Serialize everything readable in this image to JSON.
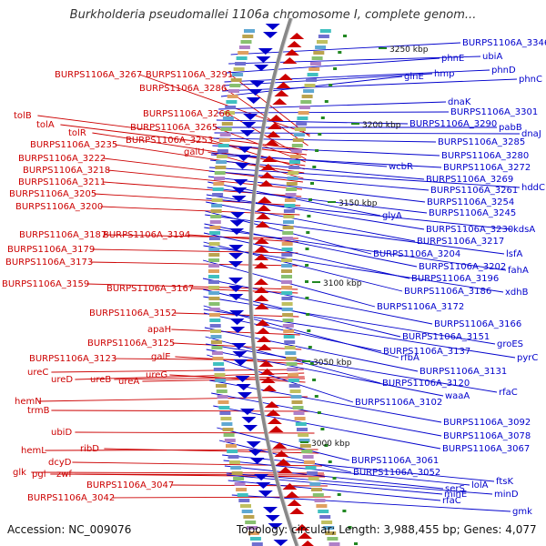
{
  "title": "Burkholderia pseudomallei 1106a chromosome I, complete genom...",
  "accession": "Accession: NC_009076",
  "summary": "Topology: circular; Length: 3,988,455 bp; Genes: 4,077",
  "colors": {
    "reverse_strand": "#cc0000",
    "forward_strand": "#0000cc",
    "backbone": "#888888",
    "kbp_tick": "#228822"
  },
  "kbp_markers": [
    {
      "text": "3250 kbp"
    },
    {
      "text": "3200 kbp"
    },
    {
      "text": "3150 kbp"
    },
    {
      "text": "3100 kbp"
    },
    {
      "text": "3050 kbp"
    },
    {
      "text": "3000 kbp"
    }
  ],
  "left_labels": [
    {
      "text": "BURPS1106A_3267"
    },
    {
      "text": "BURPS1106A_3291"
    },
    {
      "text": "BURPS1106A_3286"
    },
    {
      "text": "tolB"
    },
    {
      "text": "tolA"
    },
    {
      "text": "BURPS1106A_3266"
    },
    {
      "text": "BURPS1106A_3265"
    },
    {
      "text": "tolR"
    },
    {
      "text": "BURPS1106A_3253"
    },
    {
      "text": "BURPS1106A_3235"
    },
    {
      "text": "galU"
    },
    {
      "text": "BURPS1106A_3222"
    },
    {
      "text": "BURPS1106A_3218"
    },
    {
      "text": "BURPS1106A_3211"
    },
    {
      "text": "BURPS1106A_3205"
    },
    {
      "text": "BURPS1106A_3200"
    },
    {
      "text": "BURPS1106A_3187"
    },
    {
      "text": "BURPS1106A_3194"
    },
    {
      "text": "BURPS1106A_3179"
    },
    {
      "text": "BURPS1106A_3173"
    },
    {
      "text": "BURPS1106A_3159"
    },
    {
      "text": "BURPS1106A_3167"
    },
    {
      "text": "BURPS1106A_3152"
    },
    {
      "text": "apaH"
    },
    {
      "text": "BURPS1106A_3125"
    },
    {
      "text": "BURPS1106A_3123"
    },
    {
      "text": "galE"
    },
    {
      "text": "ureC"
    },
    {
      "text": "ureD"
    },
    {
      "text": "ureB"
    },
    {
      "text": "ureA"
    },
    {
      "text": "ureG"
    },
    {
      "text": "hemN"
    },
    {
      "text": "trmB"
    },
    {
      "text": "ubiD"
    },
    {
      "text": "hemL"
    },
    {
      "text": "ribD"
    },
    {
      "text": "dcyD"
    },
    {
      "text": "glk"
    },
    {
      "text": "pgl"
    },
    {
      "text": "zwf"
    },
    {
      "text": "BURPS1106A_3047"
    },
    {
      "text": "BURPS1106A_3042"
    }
  ],
  "right_labels": [
    {
      "text": "BURPS1106A_3346"
    },
    {
      "text": "ubiA"
    },
    {
      "text": "phnE"
    },
    {
      "text": "phnD"
    },
    {
      "text": "hmp"
    },
    {
      "text": "phnC"
    },
    {
      "text": "glnE"
    },
    {
      "text": "dnaK"
    },
    {
      "text": "BURPS1106A_3301"
    },
    {
      "text": "BURPS1106A_3290"
    },
    {
      "text": "pabB"
    },
    {
      "text": "dnaJ"
    },
    {
      "text": "BURPS1106A_3285"
    },
    {
      "text": "BURPS1106A_3280"
    },
    {
      "text": "wcbR"
    },
    {
      "text": "BURPS1106A_3272"
    },
    {
      "text": "BURPS1106A_3269"
    },
    {
      "text": "hddC"
    },
    {
      "text": "BURPS1106A_3261"
    },
    {
      "text": "BURPS1106A_3254"
    },
    {
      "text": "glyA"
    },
    {
      "text": "BURPS1106A_3245"
    },
    {
      "text": "BURPS1106A_3230"
    },
    {
      "text": "kdsA"
    },
    {
      "text": "BURPS1106A_3217"
    },
    {
      "text": "BURPS1106A_3204"
    },
    {
      "text": "lsfA"
    },
    {
      "text": "BURPS1106A_3202"
    },
    {
      "text": "fahA"
    },
    {
      "text": "BURPS1106A_3196"
    },
    {
      "text": "BURPS1106A_3186"
    },
    {
      "text": "xdhB"
    },
    {
      "text": "BURPS1106A_3172"
    },
    {
      "text": "BURPS1106A_3166"
    },
    {
      "text": "BURPS1106A_3151"
    },
    {
      "text": "groES"
    },
    {
      "text": "rfbA"
    },
    {
      "text": "pyrC"
    },
    {
      "text": "BURPS1106A_3137"
    },
    {
      "text": "BURPS1106A_3131"
    },
    {
      "text": "BURPS1106A_3120"
    },
    {
      "text": "rfaC"
    },
    {
      "text": "waaA"
    },
    {
      "text": "BURPS1106A_3102"
    },
    {
      "text": "BURPS1106A_3092"
    },
    {
      "text": "BURPS1106A_3078"
    },
    {
      "text": "BURPS1106A_3067"
    },
    {
      "text": "BURPS1106A_3061"
    },
    {
      "text": "BURPS1106A_3052"
    },
    {
      "text": "ftsK"
    },
    {
      "text": "lolA"
    },
    {
      "text": "serS"
    },
    {
      "text": "minD"
    },
    {
      "text": "minE"
    },
    {
      "text": "rfaC"
    },
    {
      "text": "gmk"
    }
  ]
}
